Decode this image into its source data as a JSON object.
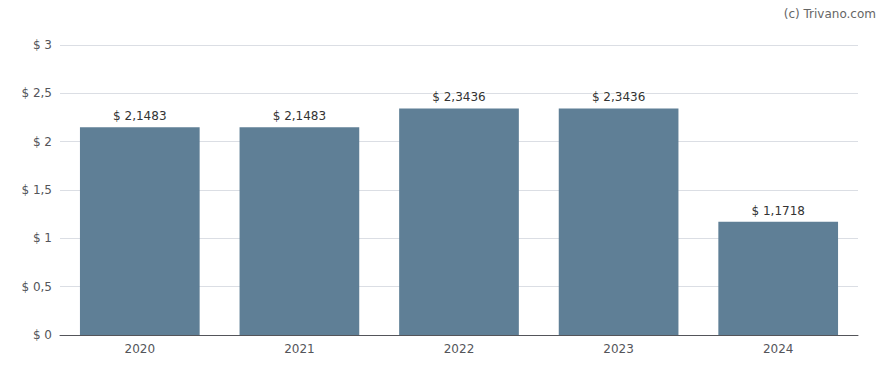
{
  "chart_data": {
    "type": "bar",
    "categories": [
      "2020",
      "2021",
      "2022",
      "2023",
      "2024"
    ],
    "values": [
      2.1483,
      2.1483,
      2.3436,
      2.3436,
      1.1718
    ],
    "value_labels": [
      "$ 2,1483",
      "$ 2,1483",
      "$ 2,3436",
      "$ 2,3436",
      "$ 1,1718"
    ],
    "data_labels": true,
    "color": "#5f7f96",
    "ylim": [
      0,
      3.0
    ],
    "yticks": [
      {
        "value": 0,
        "label": "$ 0"
      },
      {
        "value": 0.5,
        "label": "$ 0,5"
      },
      {
        "value": 1.0,
        "label": "$ 1"
      },
      {
        "value": 1.5,
        "label": "$ 1,5"
      },
      {
        "value": 2.0,
        "label": "$ 2"
      },
      {
        "value": 2.5,
        "label": "$ 2,5"
      },
      {
        "value": 3.0,
        "label": "$ 3"
      }
    ],
    "grid": true,
    "annotations": [
      "(c) Trivano.com"
    ]
  }
}
